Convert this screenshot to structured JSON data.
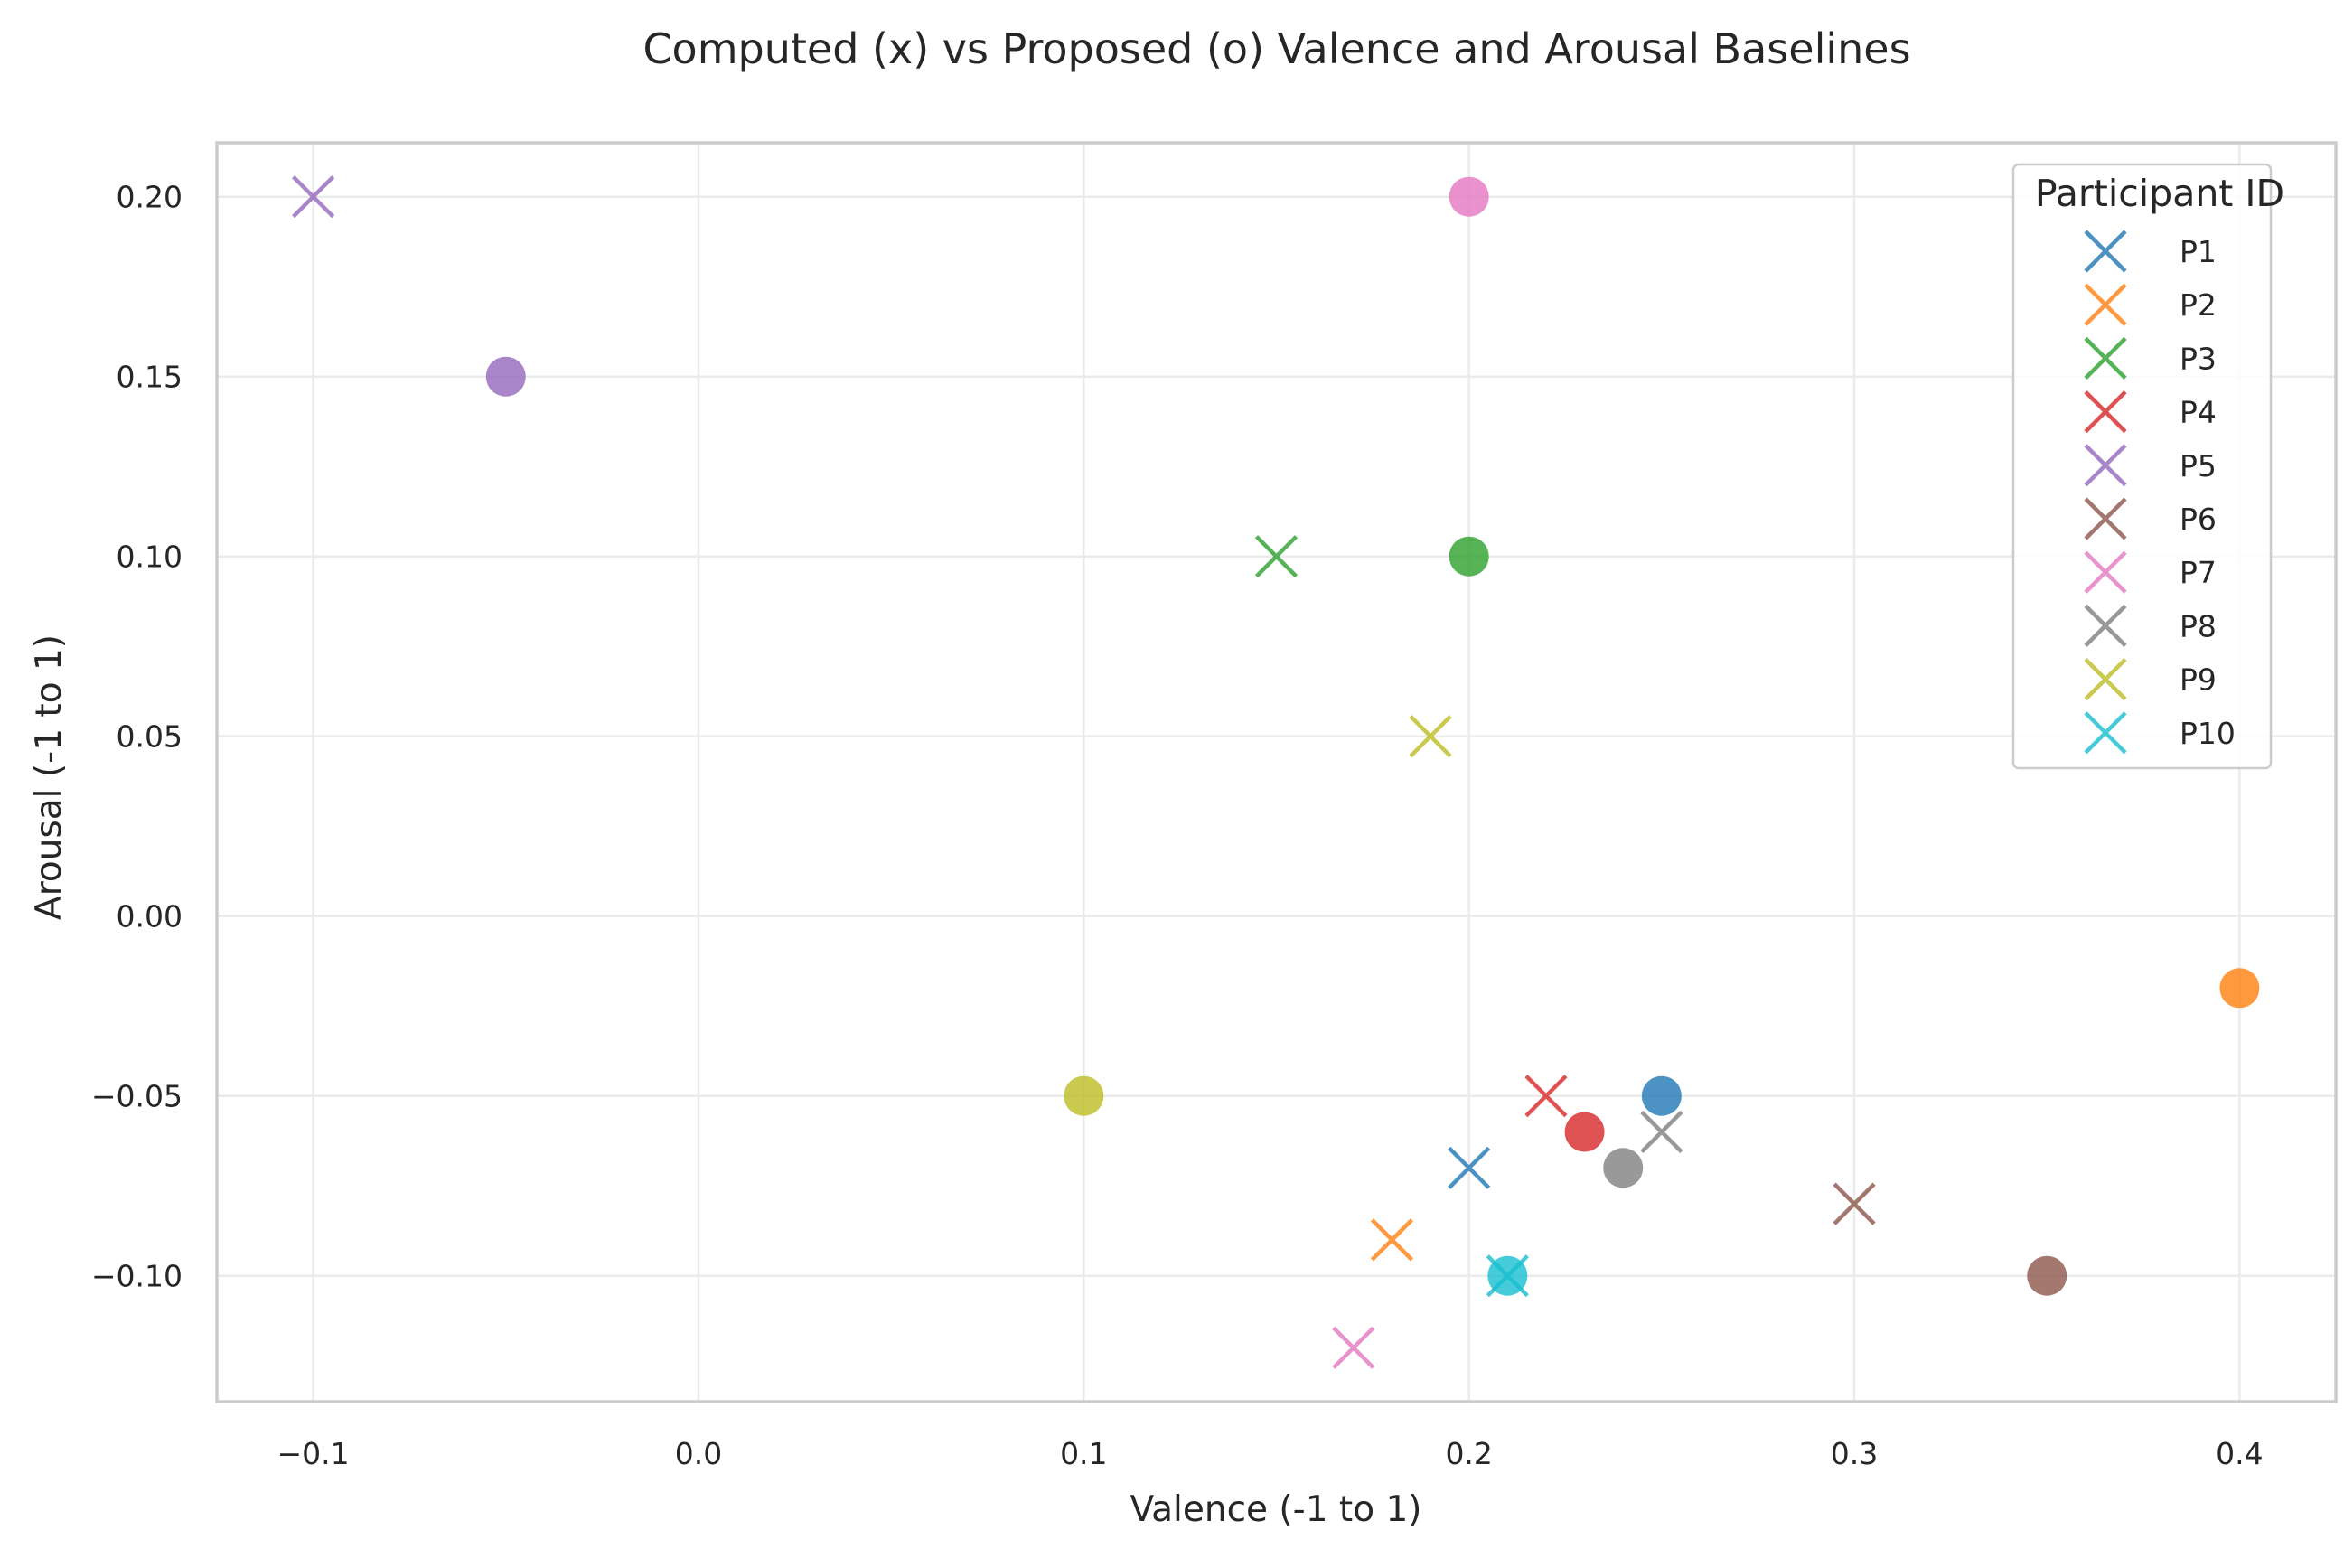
{
  "chart_data": {
    "type": "scatter",
    "title": "Computed (x) vs Proposed (o) Valence and Arousal Baselines",
    "xlabel": "Valence (-1 to 1)",
    "ylabel": "Arousal (-1 to 1)",
    "xlim": [
      -0.125,
      0.425
    ],
    "ylim": [
      -0.135,
      0.215
    ],
    "xticks": [
      -0.1,
      0.0,
      0.1,
      0.2,
      0.3,
      0.4
    ],
    "xtick_labels": [
      "−0.1",
      "0.0",
      "0.1",
      "0.2",
      "0.3",
      "0.4"
    ],
    "yticks": [
      -0.1,
      -0.05,
      0.0,
      0.05,
      0.1,
      0.15,
      0.2
    ],
    "ytick_labels": [
      "−0.10",
      "−0.05",
      "0.00",
      "0.05",
      "0.10",
      "0.15",
      "0.20"
    ],
    "grid": true,
    "legend": {
      "title": "Participant ID",
      "placement": "top-right"
    },
    "series": [
      {
        "name": "P1",
        "color": "#1f77b4",
        "computed": [
          0.2,
          -0.07
        ],
        "proposed": [
          0.25,
          -0.05
        ]
      },
      {
        "name": "P2",
        "color": "#ff7f0e",
        "computed": [
          0.18,
          -0.09
        ],
        "proposed": [
          0.4,
          -0.02
        ]
      },
      {
        "name": "P3",
        "color": "#2ca02c",
        "computed": [
          0.15,
          0.1
        ],
        "proposed": [
          0.2,
          0.1
        ]
      },
      {
        "name": "P4",
        "color": "#d62728",
        "computed": [
          0.22,
          -0.05
        ],
        "proposed": [
          0.23,
          -0.06
        ]
      },
      {
        "name": "P5",
        "color": "#9467bd",
        "computed": [
          -0.1,
          0.2
        ],
        "proposed": [
          -0.05,
          0.15
        ]
      },
      {
        "name": "P6",
        "color": "#8c564b",
        "computed": [
          0.3,
          -0.08
        ],
        "proposed": [
          0.35,
          -0.1
        ]
      },
      {
        "name": "P7",
        "color": "#e377c2",
        "computed": [
          0.17,
          -0.12
        ],
        "proposed": [
          0.2,
          0.2
        ]
      },
      {
        "name": "P8",
        "color": "#7f7f7f",
        "computed": [
          0.25,
          -0.06
        ],
        "proposed": [
          0.24,
          -0.07
        ]
      },
      {
        "name": "P9",
        "color": "#bcbd22",
        "computed": [
          0.19,
          0.05
        ],
        "proposed": [
          0.1,
          -0.05
        ]
      },
      {
        "name": "P10",
        "color": "#17becf",
        "computed": [
          0.21,
          -0.1
        ],
        "proposed": [
          0.21,
          -0.1
        ]
      }
    ]
  }
}
